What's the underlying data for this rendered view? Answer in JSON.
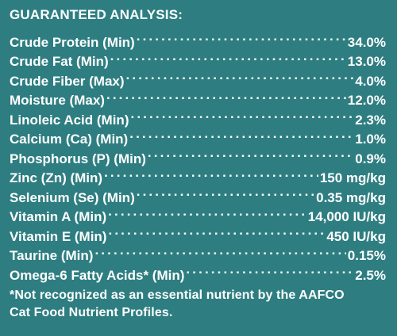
{
  "title": "GUARANTEED ANALYSIS:",
  "rows": [
    {
      "label": "Crude Protein (Min)",
      "value": "34.0%"
    },
    {
      "label": "Crude Fat (Min)",
      "value": "13.0%"
    },
    {
      "label": "Crude Fiber (Max)",
      "value": "4.0%"
    },
    {
      "label": "Moisture (Max)",
      "value": "12.0%"
    },
    {
      "label": "Linoleic Acid (Min)",
      "value": "2.3%"
    },
    {
      "label": "Calcium (Ca) (Min)",
      "value": "1.0%"
    },
    {
      "label": "Phosphorus (P) (Min)",
      "value": "0.9%"
    },
    {
      "label": "Zinc (Zn) (Min)",
      "value": "150 mg/kg"
    },
    {
      "label": "Selenium (Se) (Min)",
      "value": "0.35 mg/kg"
    },
    {
      "label": "Vitamin A (Min)",
      "value": "14,000 IU/kg"
    },
    {
      "label": "Vitamin E (Min)",
      "value": "450 IU/kg"
    },
    {
      "label": "Taurine (Min)",
      "value": "0.15%"
    },
    {
      "label": "Omega-6 Fatty Acids* (Min)",
      "value": "2.5%"
    }
  ],
  "footnote_line1": "*Not recognized as an essential nutrient by the AAFCO",
  "footnote_line2": "Cat Food Nutrient Profiles.",
  "colors": {
    "background": "#2e7e81",
    "text": "#ffffff"
  }
}
